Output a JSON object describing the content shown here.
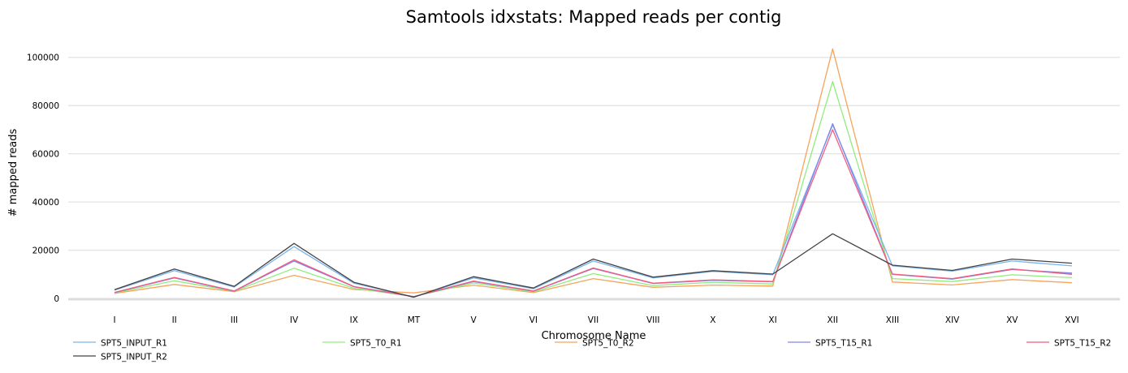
{
  "chart_data": {
    "type": "line",
    "title": "Samtools idxstats: Mapped reads per contig",
    "xlabel": "Chromosome Name",
    "ylabel": "# mapped reads",
    "categories": [
      "I",
      "II",
      "III",
      "IV",
      "IX",
      "MT",
      "V",
      "VI",
      "VII",
      "VIII",
      "X",
      "XI",
      "XII",
      "XIII",
      "XIV",
      "XV",
      "XVI"
    ],
    "ylim": [
      0,
      110000
    ],
    "yticks": [
      0,
      20000,
      40000,
      60000,
      80000,
      100000
    ],
    "grid": true,
    "legend_position": "bottom",
    "series": [
      {
        "name": "SPT5_INPUT_R1",
        "color": "#7cb5ec",
        "values": [
          3400,
          11500,
          4700,
          21500,
          6300,
          500,
          8500,
          4000,
          15500,
          8500,
          11200,
          9800,
          72000,
          13500,
          11300,
          15500,
          13500
        ]
      },
      {
        "name": "SPT5_INPUT_R2",
        "color": "#434348",
        "values": [
          3600,
          12200,
          5000,
          22800,
          6700,
          500,
          9000,
          4300,
          16300,
          8800,
          11500,
          10100,
          26800,
          13800,
          11600,
          16300,
          14600
        ]
      },
      {
        "name": "SPT5_T0_R1",
        "color": "#90ed7d",
        "values": [
          2300,
          7300,
          3000,
          12500,
          4200,
          800,
          6400,
          2700,
          10300,
          5300,
          6700,
          6000,
          90000,
          8200,
          7000,
          9800,
          8600
        ]
      },
      {
        "name": "SPT5_T0_R2",
        "color": "#f7a35c",
        "values": [
          2100,
          5800,
          2800,
          9600,
          3700,
          2300,
          5500,
          2400,
          8200,
          4600,
          5500,
          5100,
          103500,
          6800,
          5600,
          7800,
          6500
        ]
      },
      {
        "name": "SPT5_T15_R1",
        "color": "#8085e9",
        "values": [
          2400,
          8500,
          3000,
          15500,
          4800,
          700,
          7000,
          3000,
          12400,
          6200,
          7500,
          6900,
          72500,
          10000,
          8000,
          12000,
          10500
        ]
      },
      {
        "name": "SPT5_T15_R2",
        "color": "#f15c80",
        "values": [
          2500,
          8700,
          3100,
          16000,
          4900,
          700,
          7200,
          3100,
          12600,
          6300,
          7700,
          7000,
          70000,
          10100,
          8200,
          12200,
          10000
        ]
      }
    ]
  }
}
